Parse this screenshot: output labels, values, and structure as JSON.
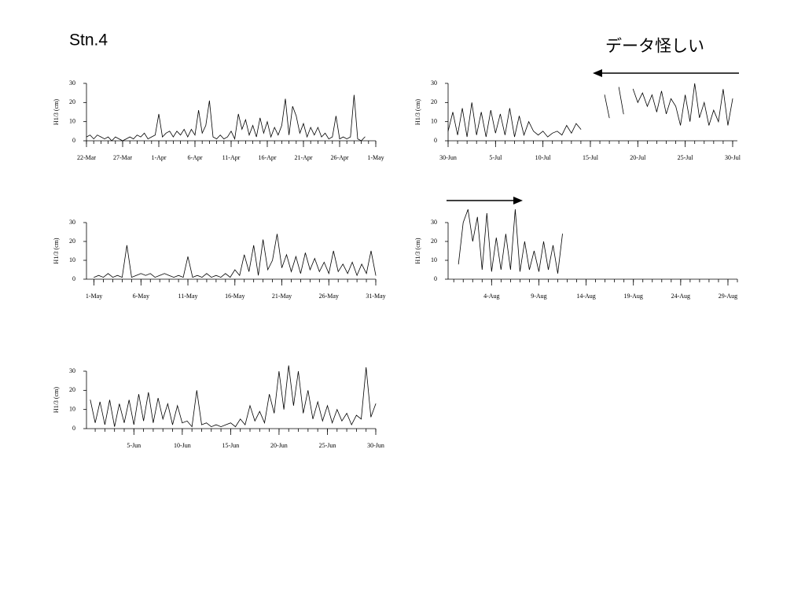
{
  "slide": {
    "title": "Stn.4",
    "note": "データ怪しい"
  },
  "chart_data": [
    {
      "type": "line",
      "ylabel": "H1/3 (cm)",
      "ylim": [
        0,
        30
      ],
      "yticks": [
        0,
        10,
        20,
        30
      ],
      "xlim": [
        0,
        40
      ],
      "xticks": [
        {
          "value": 0,
          "label": "22-Mar"
        },
        {
          "value": 5,
          "label": "27-Mar"
        },
        {
          "value": 10,
          "label": "1-Apr"
        },
        {
          "value": 15,
          "label": "6-Apr"
        },
        {
          "value": 20,
          "label": "11-Apr"
        },
        {
          "value": 25,
          "label": "16-Apr"
        },
        {
          "value": 30,
          "label": "21-Apr"
        },
        {
          "value": 35,
          "label": "26-Apr"
        },
        {
          "value": 40,
          "label": "1-May"
        }
      ],
      "x": [
        0,
        0.5,
        1,
        1.5,
        2,
        2.5,
        3,
        3.5,
        4,
        4.5,
        5,
        5.5,
        6,
        6.5,
        7,
        7.5,
        8,
        8.5,
        9,
        9.5,
        10,
        10.5,
        11,
        11.5,
        12,
        12.5,
        13,
        13.5,
        14,
        14.5,
        15,
        15.5,
        16,
        16.5,
        17,
        17.5,
        18,
        18.5,
        19,
        19.5,
        20,
        20.5,
        21,
        21.5,
        22,
        22.5,
        23,
        23.5,
        24,
        24.5,
        25,
        25.5,
        26,
        26.5,
        27,
        27.5,
        28,
        28.5,
        29,
        29.5,
        30,
        30.5,
        31,
        31.5,
        32,
        32.5,
        33,
        33.5,
        34,
        34.5,
        35,
        35.5,
        36,
        36.5,
        37,
        37.5,
        38,
        38.5,
        39,
        39.5,
        40
      ],
      "series": [
        {
          "color": "#000000",
          "values": [
            2,
            3,
            1,
            3,
            2,
            1,
            2,
            0,
            2,
            1,
            0,
            1,
            2,
            1,
            3,
            2,
            4,
            1,
            2,
            3,
            14,
            2,
            4,
            5,
            2,
            5,
            3,
            6,
            2,
            6,
            3,
            16,
            4,
            8,
            21,
            2,
            1,
            3,
            1,
            2,
            5,
            1,
            14,
            6,
            11,
            3,
            8,
            2,
            12,
            4,
            10,
            2,
            7,
            3,
            8,
            22,
            3,
            18,
            13,
            4,
            9,
            2,
            7,
            3,
            7,
            2,
            4,
            1,
            2,
            13,
            1,
            2,
            1,
            2,
            24,
            1,
            0,
            2,
            null,
            null,
            null
          ]
        }
      ]
    },
    {
      "type": "line",
      "ylabel": "H1/3 (cm)",
      "ylim": [
        0,
        30
      ],
      "yticks": [
        0,
        10,
        20,
        30
      ],
      "xlim": [
        0,
        30.5
      ],
      "xticks": [
        {
          "value": 0,
          "label": "30-Jun"
        },
        {
          "value": 5,
          "label": "5-Jul"
        },
        {
          "value": 10,
          "label": "10-Jul"
        },
        {
          "value": 15,
          "label": "15-Jul"
        },
        {
          "value": 20,
          "label": "20-Jul"
        },
        {
          "value": 25,
          "label": "25-Jul"
        },
        {
          "value": 30,
          "label": "30-Jul"
        }
      ],
      "x": [
        0,
        0.5,
        1,
        1.5,
        2,
        2.5,
        3,
        3.5,
        4,
        4.5,
        5,
        5.5,
        6,
        6.5,
        7,
        7.5,
        8,
        8.5,
        9,
        9.5,
        10,
        10.5,
        11,
        11.5,
        12,
        12.5,
        13,
        13.5,
        14,
        14.5,
        15,
        15.5,
        16,
        16.5,
        17,
        17.5,
        18,
        18.5,
        19,
        19.5,
        20,
        20.5,
        21,
        21.5,
        22,
        22.5,
        23,
        23.5,
        24,
        24.5,
        25,
        25.5,
        26,
        26.5,
        27,
        27.5,
        28,
        28.5,
        29,
        29.5,
        30
      ],
      "series": [
        {
          "color": "#000000",
          "values": [
            5,
            15,
            3,
            17,
            2,
            20,
            3,
            15,
            2,
            16,
            4,
            14,
            3,
            17,
            2,
            13,
            3,
            10,
            5,
            3,
            5,
            2,
            4,
            5,
            3,
            8,
            4,
            9,
            6,
            null,
            null,
            null,
            null,
            24,
            12,
            null,
            28,
            14,
            null,
            27,
            20,
            25,
            18,
            24,
            15,
            26,
            14,
            22,
            18,
            8,
            24,
            10,
            30,
            12,
            20,
            8,
            16,
            10,
            27,
            8,
            22
          ]
        }
      ]
    },
    {
      "type": "line",
      "ylabel": "H1/3 (cm)",
      "ylim": [
        0,
        30
      ],
      "yticks": [
        0,
        10,
        20,
        30
      ],
      "xlim": [
        -0.8,
        30
      ],
      "xticks": [
        {
          "value": 0,
          "label": "1-May"
        },
        {
          "value": 5,
          "label": "6-May"
        },
        {
          "value": 10,
          "label": "11-May"
        },
        {
          "value": 15,
          "label": "16-May"
        },
        {
          "value": 20,
          "label": "21-May"
        },
        {
          "value": 25,
          "label": "26-May"
        },
        {
          "value": 30,
          "label": "31-May"
        }
      ],
      "x": [
        0,
        0.5,
        1,
        1.5,
        2,
        2.5,
        3,
        3.5,
        4,
        4.5,
        5,
        5.5,
        6,
        6.5,
        7,
        7.5,
        8,
        8.5,
        9,
        9.5,
        10,
        10.5,
        11,
        11.5,
        12,
        12.5,
        13,
        13.5,
        14,
        14.5,
        15,
        15.5,
        16,
        16.5,
        17,
        17.5,
        18,
        18.5,
        19,
        19.5,
        20,
        20.5,
        21,
        21.5,
        22,
        22.5,
        23,
        23.5,
        24,
        24.5,
        25,
        25.5,
        26,
        26.5,
        27,
        27.5,
        28,
        28.5,
        29,
        29.5,
        30
      ],
      "series": [
        {
          "color": "#000000",
          "values": [
            1,
            2,
            1,
            3,
            1,
            2,
            1,
            18,
            1,
            2,
            3,
            2,
            3,
            1,
            2,
            3,
            2,
            1,
            2,
            1,
            12,
            1,
            2,
            1,
            3,
            1,
            2,
            1,
            3,
            1,
            5,
            2,
            13,
            4,
            18,
            2,
            21,
            5,
            10,
            24,
            6,
            13,
            4,
            12,
            3,
            14,
            5,
            11,
            4,
            9,
            3,
            15,
            4,
            8,
            3,
            9,
            2,
            8,
            3,
            15,
            2
          ]
        }
      ]
    },
    {
      "type": "line",
      "ylabel": "H1/3 (cm)",
      "ylim": [
        0,
        30
      ],
      "yticks": [
        0,
        10,
        20,
        30
      ],
      "xlim": [
        -4.6,
        26
      ],
      "xticks": [
        {
          "value": 0,
          "label": "4-Aug"
        },
        {
          "value": 5,
          "label": "9-Aug"
        },
        {
          "value": 10,
          "label": "14-Aug"
        },
        {
          "value": 15,
          "label": "19-Aug"
        },
        {
          "value": 20,
          "label": "24-Aug"
        },
        {
          "value": 25,
          "label": "29-Aug"
        }
      ],
      "x": [
        -3.5,
        -3,
        -2.5,
        -2,
        -1.5,
        -1,
        -0.5,
        0,
        0.5,
        1,
        1.5,
        2,
        2.5,
        3,
        3.5,
        4,
        4.5,
        5,
        5.5,
        6,
        6.5,
        7,
        7.5
      ],
      "series": [
        {
          "color": "#000000",
          "values": [
            8,
            30,
            37,
            20,
            33,
            5,
            35,
            4,
            22,
            5,
            24,
            5,
            37,
            4,
            20,
            5,
            15,
            4,
            20,
            5,
            18,
            3,
            24
          ]
        }
      ]
    },
    {
      "type": "line",
      "ylabel": "H1/3 (cm)",
      "ylim": [
        0,
        30
      ],
      "yticks": [
        0,
        10,
        20,
        30
      ],
      "xlim": [
        -4.9,
        25
      ],
      "xticks": [
        {
          "value": 0,
          "label": "5-Jun"
        },
        {
          "value": 5,
          "label": "10-Jun"
        },
        {
          "value": 10,
          "label": "15-Jun"
        },
        {
          "value": 15,
          "label": "20-Jun"
        },
        {
          "value": 20,
          "label": "25-Jun"
        },
        {
          "value": 25,
          "label": "30-Jun"
        }
      ],
      "x": [
        -4.5,
        -4,
        -3.5,
        -3,
        -2.5,
        -2,
        -1.5,
        -1,
        -0.5,
        0,
        0.5,
        1,
        1.5,
        2,
        2.5,
        3,
        3.5,
        4,
        4.5,
        5,
        5.5,
        6,
        6.5,
        7,
        7.5,
        8,
        8.5,
        9,
        9.5,
        10,
        10.5,
        11,
        11.5,
        12,
        12.5,
        13,
        13.5,
        14,
        14.5,
        15,
        15.5,
        16,
        16.5,
        17,
        17.5,
        18,
        18.5,
        19,
        19.5,
        20,
        20.5,
        21,
        21.5,
        22,
        22.5,
        23,
        23.5,
        24,
        24.5,
        25
      ],
      "series": [
        {
          "color": "#000000",
          "values": [
            15,
            3,
            14,
            2,
            15,
            1,
            13,
            3,
            15,
            2,
            18,
            4,
            19,
            3,
            16,
            5,
            13,
            2,
            12,
            3,
            4,
            1,
            20,
            2,
            3,
            1,
            2,
            1,
            2,
            3,
            1,
            5,
            2,
            12,
            4,
            9,
            3,
            18,
            8,
            30,
            10,
            33,
            12,
            30,
            8,
            20,
            5,
            14,
            4,
            12,
            3,
            10,
            4,
            8,
            2,
            7,
            5,
            32,
            6,
            13
          ]
        }
      ]
    }
  ]
}
